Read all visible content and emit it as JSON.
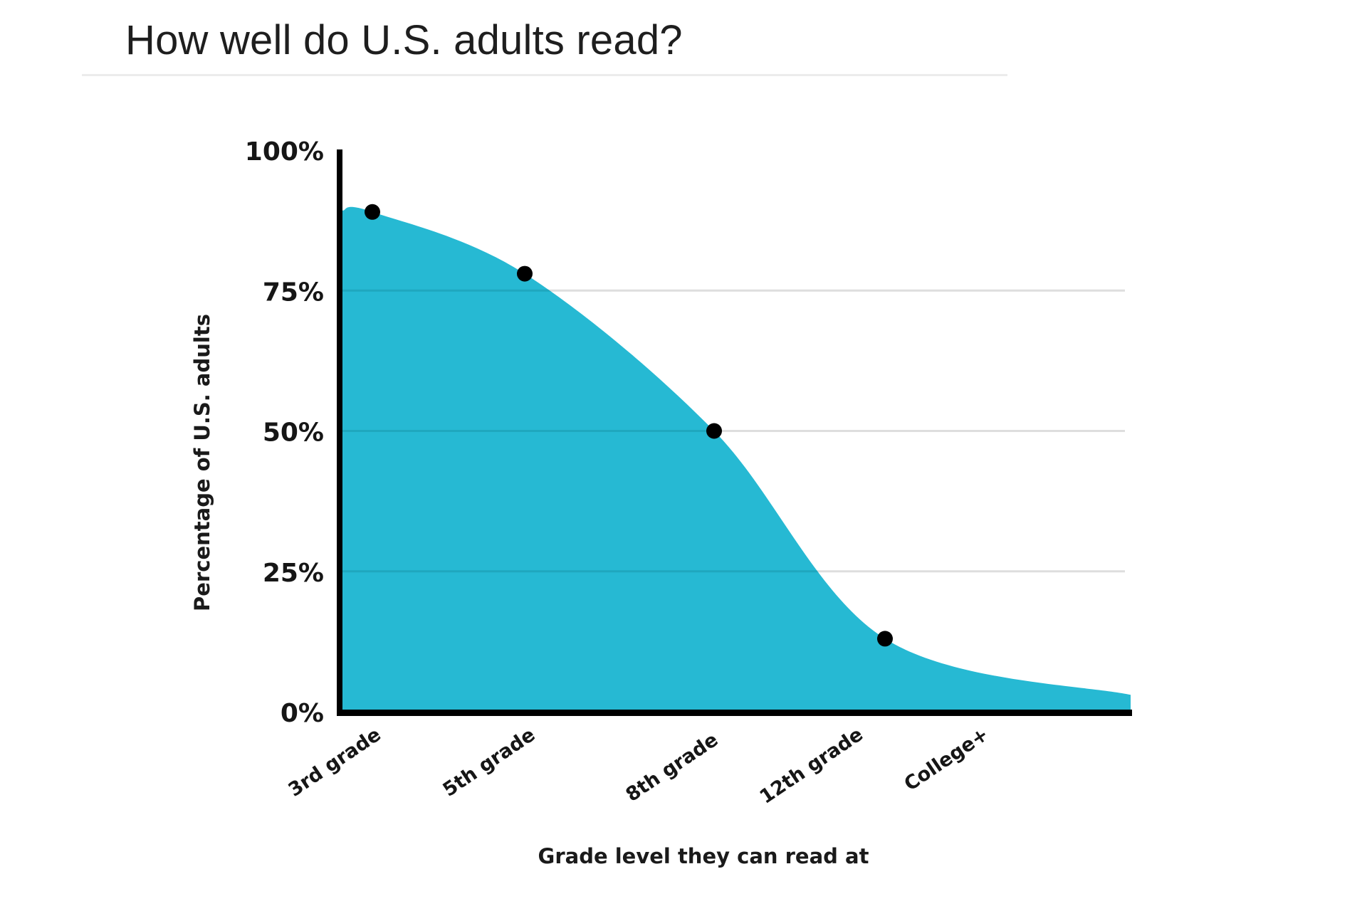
{
  "header": {
    "title": "How well do U.S. adults read?"
  },
  "chart_data": {
    "type": "area",
    "title": "How well do U.S. adults read?",
    "xlabel": "Grade level they can read at",
    "ylabel": "Percentage of U.S. adults",
    "categories": [
      "3rd grade",
      "5th grade",
      "8th grade",
      "12th grade",
      "College+"
    ],
    "series": [
      {
        "name": "Percentage of U.S. adults",
        "values": [
          89,
          78,
          50,
          13,
          3
        ],
        "markers": [
          true,
          true,
          true,
          true,
          false
        ]
      }
    ],
    "y_ticks": [
      "0%",
      "25%",
      "50%",
      "75%",
      "100%"
    ],
    "y_tick_values": [
      0,
      25,
      50,
      75,
      100
    ],
    "ylim": [
      0,
      100
    ],
    "grid": true,
    "legend": "none",
    "colors": {
      "fill": "#26B9D3",
      "grid_inside": "#1FA7BE",
      "grid_outside": "#DEDEDE",
      "axis": "#000000",
      "marker": "#000000"
    }
  }
}
